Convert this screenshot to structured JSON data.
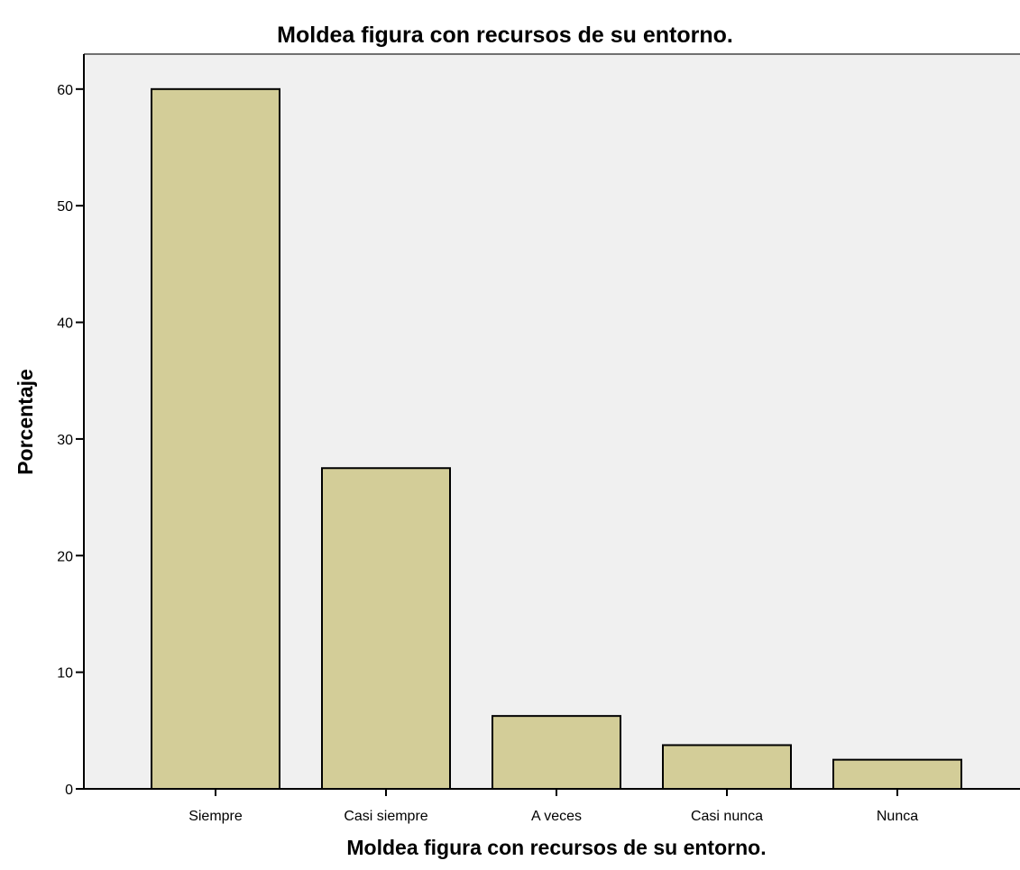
{
  "chart_data": {
    "type": "bar",
    "title": "Moldea figura con recursos de su entorno.",
    "xlabel": "Moldea figura con recursos de su entorno.",
    "ylabel": "Porcentaje",
    "categories": [
      "Siempre",
      "Casi siempre",
      "A veces",
      "Casi nunca",
      "Nunca"
    ],
    "values": [
      60.0,
      27.5,
      6.25,
      3.75,
      2.5
    ],
    "ylim": [
      0,
      63
    ],
    "yticks": [
      0,
      10,
      20,
      30,
      40,
      50,
      60
    ],
    "grid": false,
    "legend": "none",
    "colors": {
      "bar_fill": "#d3cd98",
      "bar_stroke": "#000000",
      "plot_background": "#f0f0f0",
      "plot_border": "#707070"
    }
  }
}
